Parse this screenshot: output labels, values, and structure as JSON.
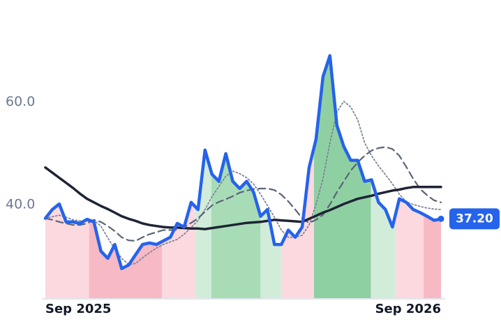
{
  "chart_data": {
    "type": "line",
    "categories": [
      "Sep 2025",
      null,
      null,
      null,
      null,
      null,
      null,
      null,
      null,
      null,
      null,
      null,
      null,
      null,
      null,
      null,
      null,
      null,
      null,
      null,
      null,
      null,
      null,
      null,
      null,
      null,
      null,
      null,
      null,
      null,
      null,
      null,
      null,
      null,
      null,
      null,
      null,
      null,
      null,
      null,
      null,
      null,
      null,
      null,
      null,
      null,
      null,
      null,
      null,
      null,
      null,
      null,
      null,
      null,
      null,
      null,
      null,
      "Sep 2026"
    ],
    "series": [
      {
        "color": "#2563eb",
        "style": "solid",
        "width": 4.5,
        "values": [
          37.3,
          39.0,
          40.1,
          36.6,
          36.6,
          36.3,
          37.1,
          36.6,
          30.9,
          29.5,
          32.2,
          27.5,
          28.2,
          30.2,
          32.2,
          32.5,
          32.2,
          32.9,
          33.6,
          36.3,
          35.6,
          40.4,
          39.0,
          50.6,
          45.9,
          44.5,
          49.9,
          44.5,
          43.1,
          44.5,
          42.4,
          37.7,
          39.0,
          32.2,
          32.2,
          35.0,
          33.6,
          35.6,
          47.2,
          52.7,
          64.9,
          69.0,
          55.4,
          51.3,
          48.6,
          48.6,
          44.5,
          44.8,
          40.4,
          39.0,
          35.6,
          41.1,
          40.4,
          39.0,
          38.4,
          37.7,
          36.9,
          37.2
        ]
      },
      {
        "color": "#1e2435",
        "style": "solid",
        "width": 3.5,
        "values": [
          47.2,
          46.2,
          45.2,
          44.2,
          43.2,
          42.1,
          41.1,
          40.4,
          39.7,
          39.1,
          38.4,
          37.7,
          37.2,
          36.8,
          36.3,
          36.0,
          35.8,
          35.6,
          35.5,
          35.5,
          35.4,
          35.3,
          35.3,
          35.2,
          35.4,
          35.6,
          35.8,
          36.0,
          36.2,
          36.4,
          36.5,
          36.6,
          36.8,
          37.0,
          36.9,
          36.8,
          36.7,
          36.6,
          37.2,
          37.8,
          38.4,
          38.9,
          39.5,
          40.1,
          40.6,
          41.1,
          41.4,
          41.7,
          42.1,
          42.4,
          42.7,
          42.9,
          43.2,
          43.4,
          43.4,
          43.4,
          43.4,
          43.4
        ]
      },
      {
        "color": "#5a6478",
        "style": "dashed",
        "width": 2.2,
        "values": [
          37.3,
          37.0,
          36.6,
          36.3,
          36.0,
          36.0,
          36.3,
          37.0,
          36.6,
          35.8,
          34.8,
          33.6,
          33.0,
          32.9,
          33.6,
          34.2,
          34.6,
          35.0,
          35.0,
          35.1,
          35.6,
          36.4,
          37.3,
          38.6,
          39.8,
          40.5,
          41.0,
          41.6,
          42.3,
          42.7,
          43.0,
          43.1,
          43.1,
          42.8,
          41.9,
          40.6,
          39.0,
          37.3,
          36.4,
          37.0,
          38.0,
          40.0,
          42.4,
          44.5,
          46.6,
          48.2,
          49.5,
          50.5,
          51.0,
          51.2,
          50.8,
          49.5,
          47.3,
          45.0,
          43.0,
          41.8,
          40.8,
          40.4
        ]
      },
      {
        "color": "#7c8599",
        "style": "dotted",
        "width": 1.8,
        "values": [
          37.3,
          37.6,
          37.9,
          37.5,
          37.0,
          36.8,
          36.8,
          36.9,
          35.8,
          33.5,
          31.3,
          29.5,
          28.3,
          28.5,
          29.6,
          30.6,
          31.5,
          32.2,
          32.7,
          33.2,
          34.2,
          35.5,
          36.9,
          39.0,
          41.5,
          43.5,
          45.5,
          46.5,
          46.0,
          45.2,
          44.0,
          42.0,
          39.8,
          37.5,
          35.0,
          33.6,
          33.6,
          34.0,
          36.0,
          40.0,
          45.0,
          52.0,
          58.0,
          60.1,
          59.0,
          56.5,
          52.0,
          49.5,
          47.5,
          45.8,
          44.0,
          42.0,
          40.5,
          40.0,
          39.6,
          39.3,
          39.1,
          39.0
        ]
      }
    ],
    "regions": [
      {
        "from": 0,
        "to": 6.3,
        "color": "#fcd9df"
      },
      {
        "from": 6.3,
        "to": 16.8,
        "color": "#f7b9c4"
      },
      {
        "from": 16.8,
        "to": 21.6,
        "color": "#fcd9df"
      },
      {
        "from": 21.6,
        "to": 23.9,
        "color": "#d2ecda"
      },
      {
        "from": 23.9,
        "to": 31,
        "color": "#a8dcb6"
      },
      {
        "from": 31,
        "to": 34,
        "color": "#d2ecda"
      },
      {
        "from": 34,
        "to": 38.7,
        "color": "#fcd9df"
      },
      {
        "from": 38.7,
        "to": 46.9,
        "color": "#8fd0a2"
      },
      {
        "from": 46.9,
        "to": 50.5,
        "color": "#d2ecda"
      },
      {
        "from": 50.5,
        "to": 54.5,
        "color": "#fcd9df"
      },
      {
        "from": 54.5,
        "to": 57,
        "color": "#f7b9c4"
      }
    ],
    "last_value_label": "37.20",
    "ylim": [
      21.6,
      74.4
    ],
    "yticks": [
      {
        "value": 40,
        "label": "40.0"
      },
      {
        "value": 60,
        "label": "60.0"
      }
    ]
  }
}
